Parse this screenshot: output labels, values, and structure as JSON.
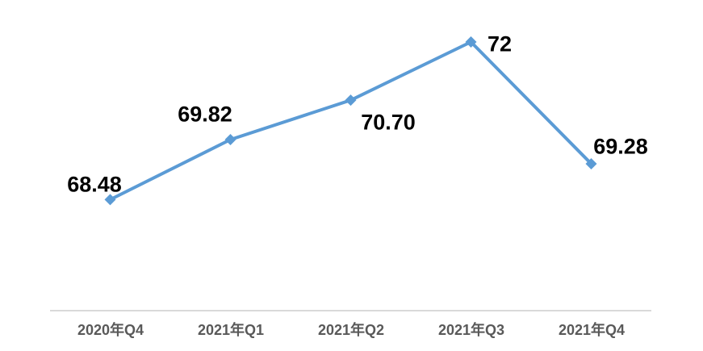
{
  "chart_data": {
    "type": "line",
    "title": "",
    "xlabel": "",
    "ylabel": "",
    "categories": [
      "2020年Q4",
      "2021年Q1",
      "2021年Q2",
      "2021年Q3",
      "2021年Q4"
    ],
    "values": [
      68.48,
      69.82,
      70.7,
      72,
      69.28
    ],
    "labels": [
      "68.48",
      "69.82",
      "70.70",
      "72",
      "69.28"
    ],
    "ylim": [
      66,
      73
    ],
    "gridlines": false,
    "legend_position": "none",
    "marker": "diamond",
    "line_color": "#5B9BD5",
    "label_color": "#000000",
    "category_label_color": "#595959",
    "axis_line_color": "#D9D9D9",
    "background_color": "#FFFFFF"
  }
}
